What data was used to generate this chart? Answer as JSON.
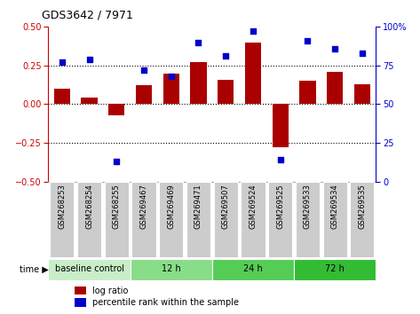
{
  "title": "GDS3642 / 7971",
  "samples": [
    "GSM268253",
    "GSM268254",
    "GSM268255",
    "GSM269467",
    "GSM269469",
    "GSM269471",
    "GSM269507",
    "GSM269524",
    "GSM269525",
    "GSM269533",
    "GSM269534",
    "GSM269535"
  ],
  "log_ratio": [
    0.1,
    0.04,
    -0.07,
    0.12,
    0.2,
    0.27,
    0.16,
    0.4,
    -0.28,
    0.15,
    0.21,
    0.13
  ],
  "percentile": [
    77,
    79,
    13,
    72,
    68,
    90,
    81,
    97,
    14,
    91,
    86,
    83
  ],
  "ylim_left": [
    -0.5,
    0.5
  ],
  "ylim_right": [
    0,
    100
  ],
  "dotted_lines": [
    0.25,
    0.0,
    -0.25
  ],
  "bar_color": "#AA0000",
  "dot_color": "#0000CC",
  "groups": [
    {
      "label": "baseline control",
      "start": 0,
      "end": 3,
      "color": "#c8eec8"
    },
    {
      "label": "12 h",
      "start": 3,
      "end": 6,
      "color": "#88dd88"
    },
    {
      "label": "24 h",
      "start": 6,
      "end": 9,
      "color": "#55cc55"
    },
    {
      "label": "72 h",
      "start": 9,
      "end": 12,
      "color": "#33bb33"
    }
  ],
  "legend_bar_label": "log ratio",
  "legend_dot_label": "percentile rank within the sample",
  "yticks_left": [
    -0.5,
    -0.25,
    0.0,
    0.25,
    0.5
  ],
  "yticks_right": [
    0,
    25,
    50,
    75,
    100
  ],
  "axis_left_color": "#CC0000",
  "axis_right_color": "#0000CC",
  "cell_bg": "#cccccc",
  "bar_width": 0.6
}
